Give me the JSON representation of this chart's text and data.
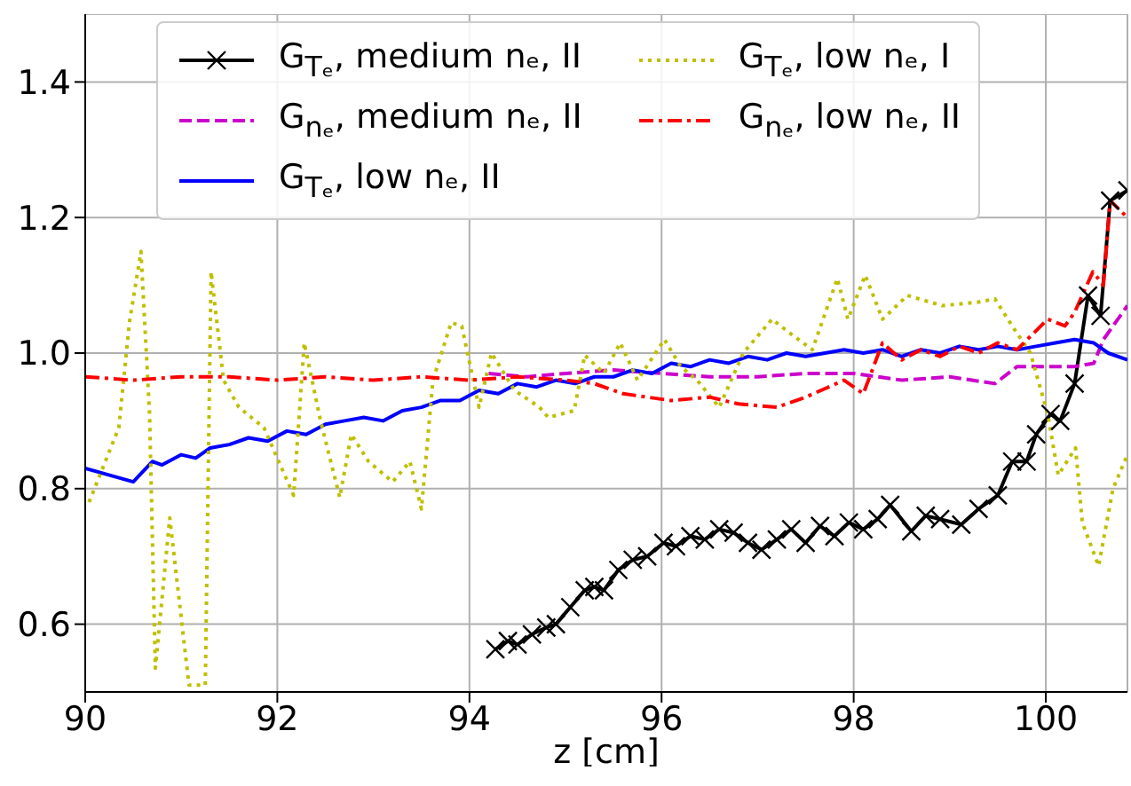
{
  "chart_data": {
    "type": "line",
    "xlabel": "z [cm]",
    "xlim": [
      90,
      100.85
    ],
    "xticks": [
      90,
      92,
      94,
      96,
      98,
      100
    ],
    "ylim": [
      0.5,
      1.5
    ],
    "yticks": [
      {
        "value": 0.6,
        "label": "0.6"
      },
      {
        "value": 0.8,
        "label": "0.8"
      },
      {
        "value": 1,
        "label": "1.0"
      },
      {
        "value": 1.2,
        "label": "1.2"
      },
      {
        "value": 1.4,
        "label": "1.4"
      }
    ],
    "grid": true,
    "legend": "top",
    "series": [
      {
        "name": "G$_{Tₑ}$, medium nₑ, II",
        "color": "#000000",
        "marker": "cross",
        "line_style": "solid",
        "x": [
          94.27,
          94.4,
          94.5,
          94.65,
          94.8,
          94.9,
          95.05,
          95.2,
          95.3,
          95.4,
          95.55,
          95.7,
          95.85,
          96.02,
          96.15,
          96.3,
          96.45,
          96.6,
          96.75,
          96.9,
          97.04,
          97.2,
          97.35,
          97.5,
          97.65,
          97.8,
          97.95,
          98.1,
          98.25,
          98.38,
          98.6,
          98.75,
          98.9,
          99.12,
          99.3,
          99.5,
          99.65,
          99.8,
          99.9,
          100.05,
          100.15,
          100.3,
          100.44,
          100.57,
          100.67,
          100.85
        ],
        "values": [
          0.563,
          0.575,
          0.57,
          0.585,
          0.595,
          0.6,
          0.625,
          0.65,
          0.655,
          0.65,
          0.68,
          0.695,
          0.7,
          0.72,
          0.715,
          0.73,
          0.725,
          0.74,
          0.735,
          0.72,
          0.71,
          0.725,
          0.74,
          0.72,
          0.745,
          0.73,
          0.75,
          0.74,
          0.755,
          0.776,
          0.737,
          0.76,
          0.755,
          0.747,
          0.77,
          0.79,
          0.84,
          0.84,
          0.88,
          0.91,
          0.9,
          0.955,
          1.085,
          1.055,
          1.225,
          1.24
        ]
      },
      {
        "name": "G$_{nₑ}$, medium nₑ, II",
        "color": "#cc00cc",
        "marker": "none",
        "line_style": "dashed",
        "x": [
          94.2,
          94.6,
          95.0,
          95.5,
          96.0,
          96.5,
          97.0,
          97.5,
          98.0,
          98.5,
          99.0,
          99.47,
          99.7,
          100.0,
          100.3,
          100.5,
          100.6,
          100.85
        ],
        "values": [
          0.97,
          0.965,
          0.97,
          0.975,
          0.97,
          0.965,
          0.965,
          0.97,
          0.97,
          0.96,
          0.965,
          0.955,
          0.98,
          0.98,
          0.98,
          0.985,
          1.02,
          1.07
        ]
      },
      {
        "name": "G$_{Tₑ}$, low nₑ, II",
        "color": "#0000ff",
        "marker": "none",
        "line_style": "solid",
        "x": [
          90,
          90.5,
          90.7,
          90.8,
          91.0,
          91.15,
          91.3,
          91.5,
          91.7,
          91.9,
          92.1,
          92.3,
          92.5,
          92.7,
          92.9,
          93.1,
          93.3,
          93.5,
          93.7,
          93.9,
          94.1,
          94.3,
          94.5,
          94.7,
          94.9,
          95.1,
          95.3,
          95.5,
          95.7,
          95.9,
          96.1,
          96.3,
          96.5,
          96.7,
          96.9,
          97.1,
          97.3,
          97.5,
          97.7,
          97.9,
          98.1,
          98.3,
          98.5,
          98.7,
          98.9,
          99.1,
          99.3,
          99.5,
          99.7,
          99.9,
          100.1,
          100.3,
          100.5,
          100.65,
          100.85
        ],
        "values": [
          0.83,
          0.81,
          0.84,
          0.835,
          0.85,
          0.845,
          0.86,
          0.865,
          0.875,
          0.87,
          0.885,
          0.88,
          0.895,
          0.9,
          0.905,
          0.9,
          0.915,
          0.92,
          0.93,
          0.93,
          0.945,
          0.94,
          0.955,
          0.95,
          0.96,
          0.955,
          0.965,
          0.965,
          0.975,
          0.97,
          0.985,
          0.98,
          0.99,
          0.985,
          0.995,
          0.99,
          1.0,
          0.995,
          1.0,
          1.005,
          1.0,
          1.005,
          0.995,
          1.005,
          1.0,
          1.01,
          1.005,
          1.01,
          1.005,
          1.01,
          1.015,
          1.02,
          1.015,
          1.0,
          0.99
        ]
      },
      {
        "name": "G$_{Tₑ}$, low nₑ, I",
        "color": "#bfbf00",
        "marker": "none",
        "line_style": "dotted",
        "x": [
          90.04,
          90.35,
          90.46,
          90.58,
          90.67,
          90.73,
          90.88,
          91.08,
          91.25,
          91.31,
          91.44,
          91.6,
          91.86,
          92.17,
          92.28,
          92.45,
          92.65,
          92.77,
          92.95,
          93.2,
          93.38,
          93.5,
          93.62,
          93.81,
          93.92,
          94.1,
          94.23,
          94.47,
          94.73,
          94.82,
          95.09,
          95.2,
          95.4,
          95.57,
          95.75,
          96.03,
          96.2,
          96.37,
          96.6,
          96.85,
          97.15,
          97.33,
          97.57,
          97.83,
          97.94,
          98.12,
          98.3,
          98.56,
          98.92,
          99.29,
          99.47,
          99.65,
          99.84,
          100.02,
          100.13,
          100.31,
          100.38,
          100.55,
          100.7,
          100.85
        ],
        "values": [
          0.78,
          0.89,
          1.045,
          1.15,
          0.91,
          0.535,
          0.757,
          0.51,
          0.51,
          1.12,
          0.96,
          0.92,
          0.89,
          0.79,
          1.015,
          0.9,
          0.787,
          0.88,
          0.84,
          0.81,
          0.84,
          0.77,
          0.96,
          1.045,
          1.04,
          0.92,
          1.0,
          0.945,
          0.92,
          0.905,
          0.915,
          0.997,
          0.97,
          1.015,
          0.96,
          1.02,
          0.98,
          0.96,
          0.92,
          1.0,
          1.05,
          1.03,
          1.005,
          1.11,
          1.05,
          1.115,
          1.05,
          1.085,
          1.07,
          1.075,
          1.08,
          1.04,
          1.0,
          0.91,
          0.82,
          0.86,
          0.75,
          0.686,
          0.8,
          0.85
        ]
      },
      {
        "name": "G$_{nₑ}$, low nₑ, II",
        "color": "#ff0000",
        "marker": "none",
        "line_style": "dashdot",
        "x": [
          90,
          90.5,
          91.0,
          91.5,
          92.0,
          92.5,
          93.0,
          93.5,
          94.0,
          94.5,
          95.0,
          95.3,
          95.6,
          96.1,
          96.5,
          96.8,
          97.2,
          97.5,
          97.9,
          98.1,
          98.3,
          98.5,
          98.7,
          98.9,
          99.1,
          99.3,
          99.5,
          99.7,
          100.02,
          100.2,
          100.3,
          100.49,
          100.6,
          100.67,
          100.85
        ],
        "values": [
          0.965,
          0.96,
          0.965,
          0.965,
          0.96,
          0.965,
          0.96,
          0.965,
          0.96,
          0.965,
          0.96,
          0.955,
          0.94,
          0.93,
          0.935,
          0.925,
          0.92,
          0.935,
          0.96,
          0.94,
          1.015,
          0.99,
          1.005,
          0.995,
          1.01,
          1.0,
          1.015,
          1.005,
          1.05,
          1.04,
          1.06,
          1.12,
          1.1,
          1.225,
          1.2
        ]
      }
    ]
  }
}
